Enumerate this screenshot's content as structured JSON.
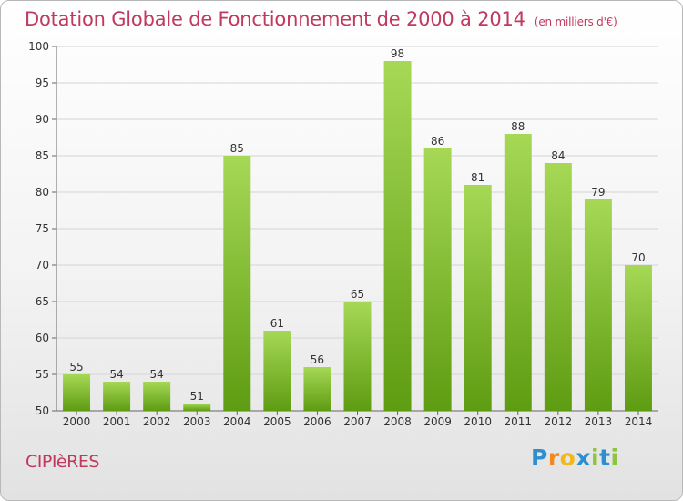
{
  "header": {
    "title": "Dotation Globale de Fonctionnement de 2000 à 2014",
    "subtitle": "(en milliers d'€)"
  },
  "footer": {
    "commune": "CIPIèRES",
    "logo_letters": [
      "P",
      "r",
      "o",
      "x",
      "i",
      "t",
      "i"
    ]
  },
  "colors": {
    "title": "#c0395e",
    "bar_top": "#a6d856",
    "bar_bottom": "#5e9c12",
    "grid": "#d4d4d4"
  },
  "chart_data": {
    "type": "bar",
    "title": "Dotation Globale de Fonctionnement de 2000 à 2014",
    "subtitle": "(en milliers d'€)",
    "categories": [
      "2000",
      "2001",
      "2002",
      "2003",
      "2004",
      "2005",
      "2006",
      "2007",
      "2008",
      "2009",
      "2010",
      "2011",
      "2012",
      "2013",
      "2014"
    ],
    "values": [
      55,
      54,
      54,
      51,
      85,
      61,
      56,
      65,
      98,
      86,
      81,
      88,
      84,
      79,
      70
    ],
    "ylim": [
      50,
      100
    ],
    "yticks": [
      50,
      55,
      60,
      65,
      70,
      75,
      80,
      85,
      90,
      95,
      100
    ],
    "grid": true,
    "data_labels": true,
    "xlabel": "",
    "ylabel": ""
  }
}
